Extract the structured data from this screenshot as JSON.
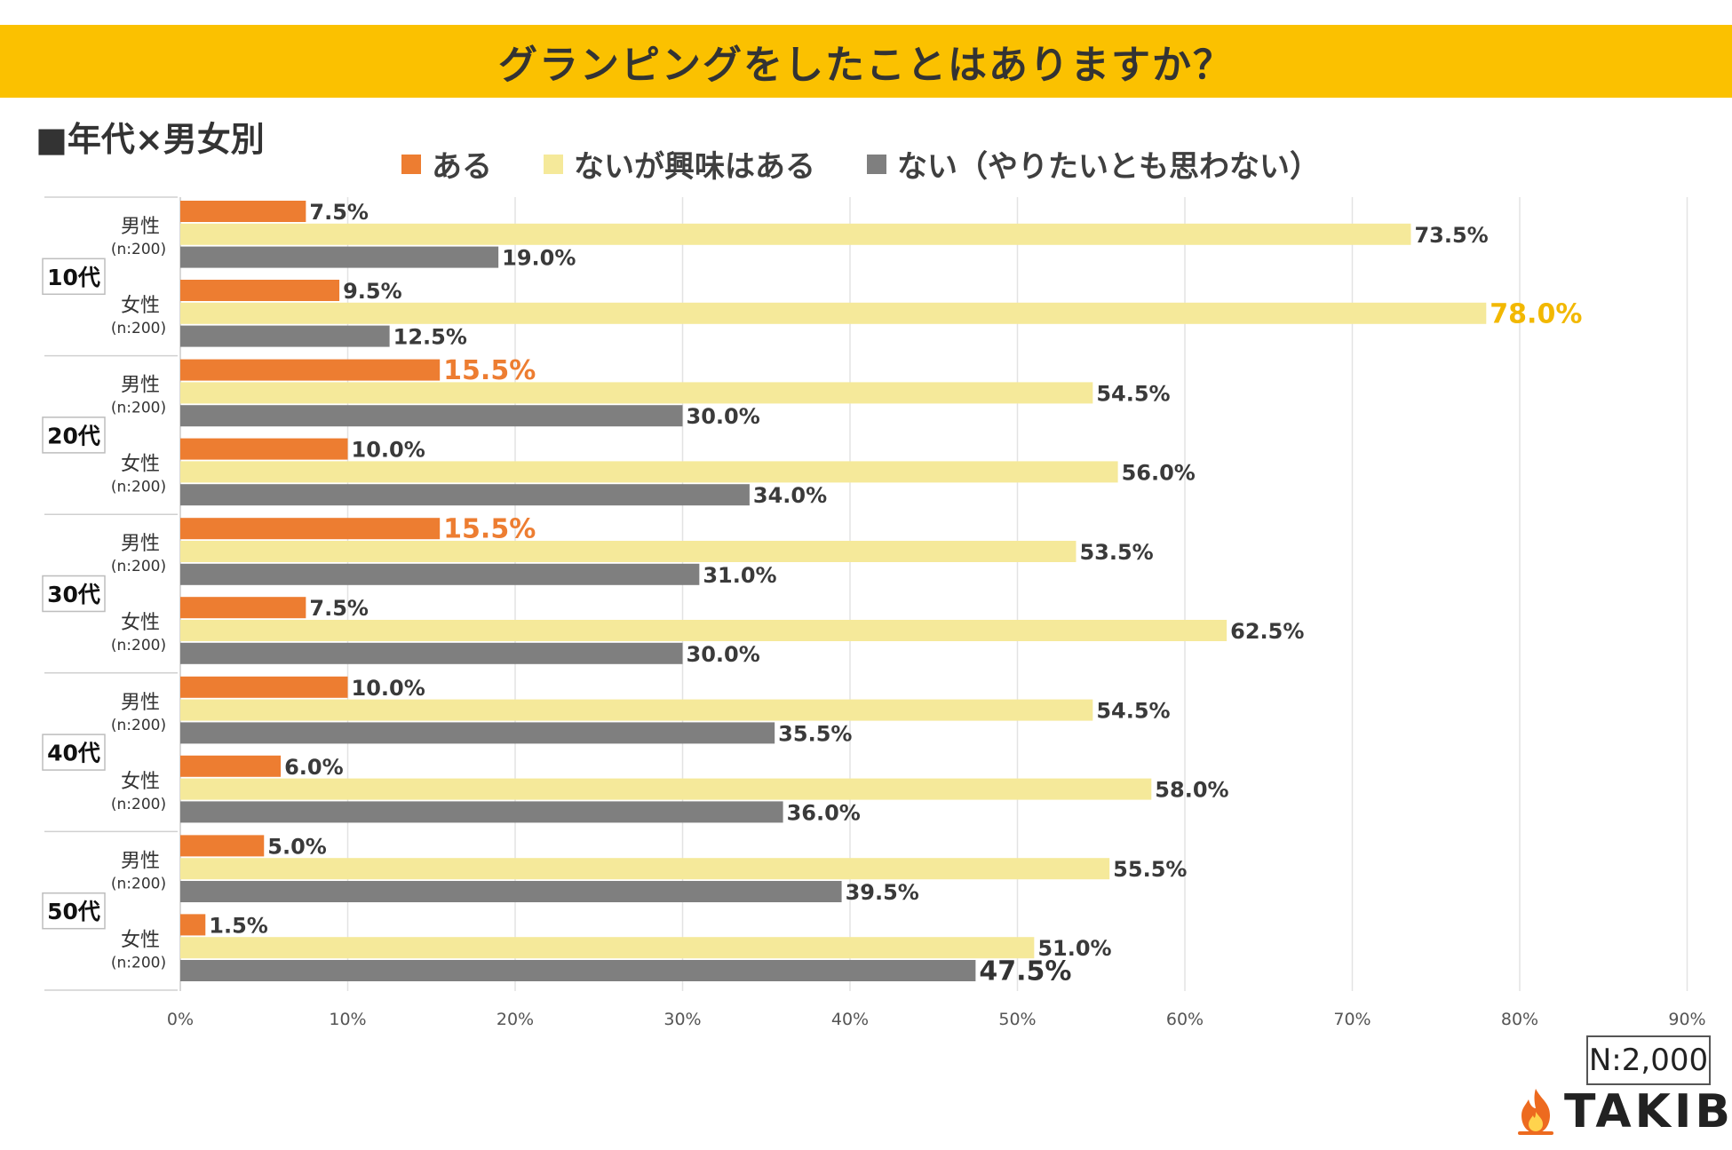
{
  "header": {
    "title": "グランピングをしたことはありますか？",
    "subtitle": "■年代×男女別"
  },
  "colors": {
    "title_band": "#fbc100",
    "aru": "#ed7d31",
    "interest": "#f5e99a",
    "nai": "#7f7f7f",
    "highlight_orange": "#ed7d31",
    "highlight_yellow": "#f2b800",
    "highlight_dark": "#333333"
  },
  "footer": {
    "sample_size": "N:2,000",
    "brand": "TAKIBI"
  },
  "chart_data": {
    "type": "bar",
    "orientation": "horizontal",
    "title": "グランピングをしたことはありますか？",
    "legend": [
      "ある",
      "ないが興味はある",
      "ない（やりたいとも思わない）"
    ],
    "legend_position": "top",
    "xlim": [
      0,
      90
    ],
    "xticks": [
      "0%",
      "10%",
      "20%",
      "30%",
      "40%",
      "50%",
      "60%",
      "70%",
      "80%",
      "90%"
    ],
    "grid": true,
    "groups": [
      {
        "age": "10代",
        "rows": [
          {
            "gender": "男性",
            "n": "(n:200)",
            "values": [
              7.5,
              73.5,
              19.0
            ],
            "labels": [
              "7.5%",
              "73.5%",
              "19.0%"
            ],
            "highlight": [
              null,
              null,
              null
            ]
          },
          {
            "gender": "女性",
            "n": "(n:200)",
            "values": [
              9.5,
              78.0,
              12.5
            ],
            "labels": [
              "9.5%",
              "78.0%",
              "12.5%"
            ],
            "highlight": [
              null,
              "yellow",
              null
            ]
          }
        ]
      },
      {
        "age": "20代",
        "rows": [
          {
            "gender": "男性",
            "n": "(n:200)",
            "values": [
              15.5,
              54.5,
              30.0
            ],
            "labels": [
              "15.5%",
              "54.5%",
              "30.0%"
            ],
            "highlight": [
              "orange",
              null,
              null
            ]
          },
          {
            "gender": "女性",
            "n": "(n:200)",
            "values": [
              10.0,
              56.0,
              34.0
            ],
            "labels": [
              "10.0%",
              "56.0%",
              "34.0%"
            ],
            "highlight": [
              null,
              null,
              null
            ]
          }
        ]
      },
      {
        "age": "30代",
        "rows": [
          {
            "gender": "男性",
            "n": "(n:200)",
            "values": [
              15.5,
              53.5,
              31.0
            ],
            "labels": [
              "15.5%",
              "53.5%",
              "31.0%"
            ],
            "highlight": [
              "orange",
              null,
              null
            ]
          },
          {
            "gender": "女性",
            "n": "(n:200)",
            "values": [
              7.5,
              62.5,
              30.0
            ],
            "labels": [
              "7.5%",
              "62.5%",
              "30.0%"
            ],
            "highlight": [
              null,
              null,
              null
            ]
          }
        ]
      },
      {
        "age": "40代",
        "rows": [
          {
            "gender": "男性",
            "n": "(n:200)",
            "values": [
              10.0,
              54.5,
              35.5
            ],
            "labels": [
              "10.0%",
              "54.5%",
              "35.5%"
            ],
            "highlight": [
              null,
              null,
              null
            ]
          },
          {
            "gender": "女性",
            "n": "(n:200)",
            "values": [
              6.0,
              58.0,
              36.0
            ],
            "labels": [
              "6.0%",
              "58.0%",
              "36.0%"
            ],
            "highlight": [
              null,
              null,
              null
            ]
          }
        ]
      },
      {
        "age": "50代",
        "rows": [
          {
            "gender": "男性",
            "n": "(n:200)",
            "values": [
              5.0,
              55.5,
              39.5
            ],
            "labels": [
              "5.0%",
              "55.5%",
              "39.5%"
            ],
            "highlight": [
              null,
              null,
              null
            ]
          },
          {
            "gender": "女性",
            "n": "(n:200)",
            "values": [
              1.5,
              51.0,
              47.5
            ],
            "labels": [
              "1.5%",
              "51.0%",
              "47.5%"
            ],
            "highlight": [
              null,
              null,
              "dark"
            ]
          }
        ]
      }
    ]
  }
}
